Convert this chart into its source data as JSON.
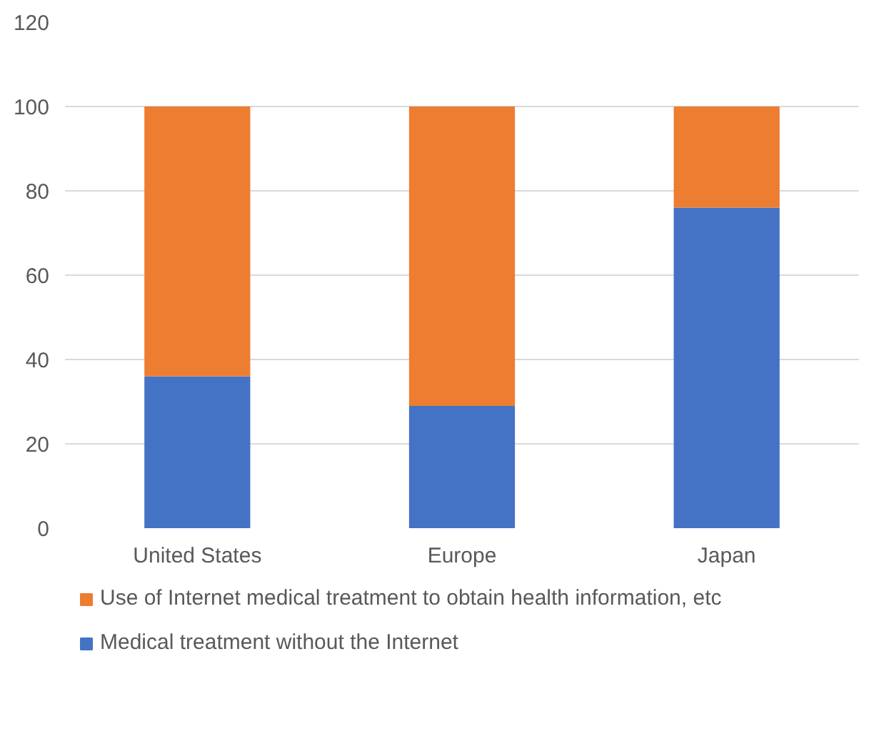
{
  "chart_data": {
    "type": "bar",
    "stacked": true,
    "categories": [
      "United States",
      "Europe",
      "Japan"
    ],
    "series": [
      {
        "name": "Medical treatment without the Internet",
        "color": "#4472c4",
        "values": [
          36,
          29,
          76
        ]
      },
      {
        "name": "Use of Internet medical treatment to obtain health information, etc",
        "color": "#ed7d31",
        "values": [
          64,
          71,
          24
        ]
      }
    ],
    "ylim": [
      0,
      120
    ],
    "yticks": [
      0,
      20,
      40,
      60,
      80,
      100,
      120
    ],
    "grid": "y",
    "legend": "bottom"
  }
}
